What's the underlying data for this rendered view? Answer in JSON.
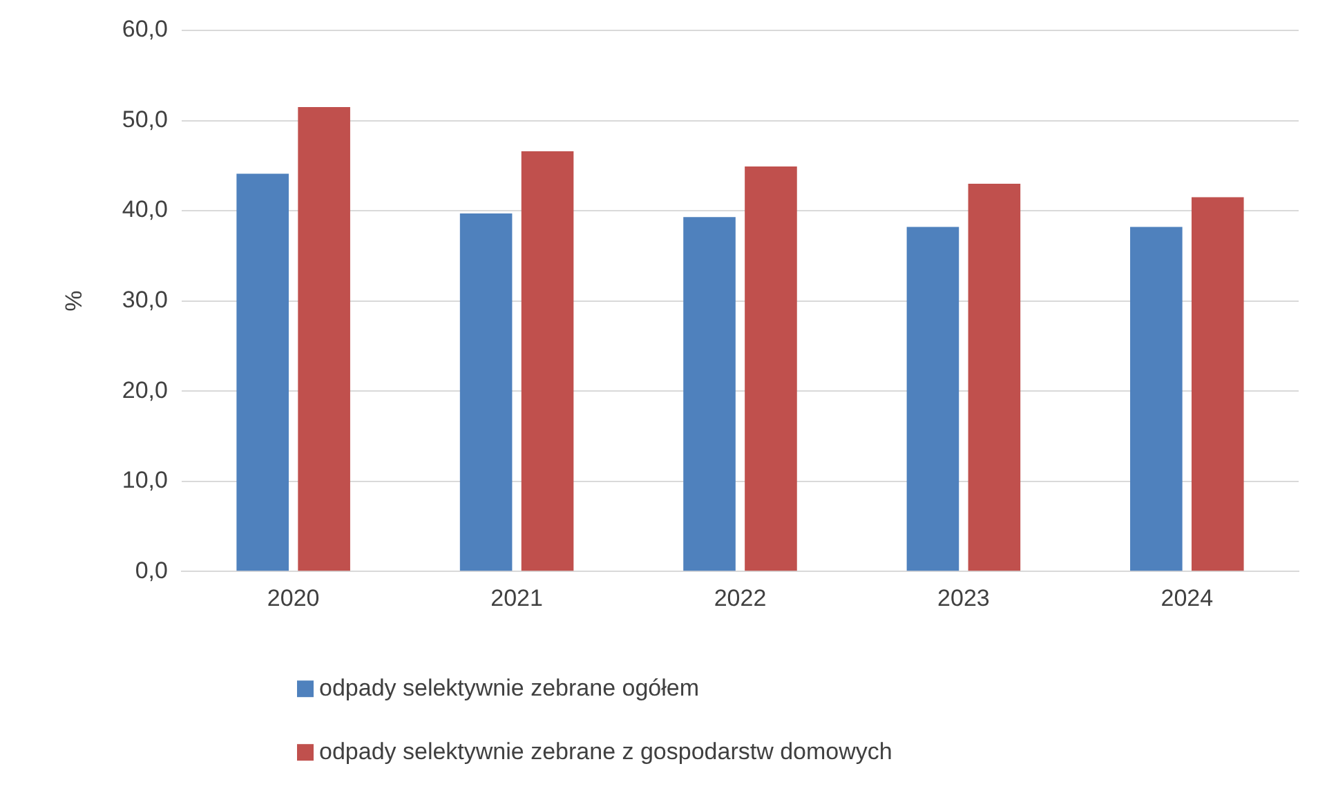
{
  "chart_data": {
    "type": "bar",
    "ylabel": "%",
    "categories": [
      "2020",
      "2021",
      "2022",
      "2023",
      "2024"
    ],
    "series": [
      {
        "name": "odpady selektywnie zebrane ogółem",
        "color": "#4f81bd",
        "values": [
          44.1,
          39.7,
          39.3,
          38.2,
          38.2
        ]
      },
      {
        "name": "odpady selektywnie zebrane z gospodarstw domowych",
        "color": "#c0504d",
        "values": [
          51.5,
          46.6,
          44.9,
          43.0,
          41.5
        ]
      }
    ],
    "ylim": [
      0,
      60
    ],
    "yticks": [
      {
        "value": 0,
        "label": "0,0"
      },
      {
        "value": 10,
        "label": "10,0"
      },
      {
        "value": 20,
        "label": "20,0"
      },
      {
        "value": 30,
        "label": "30,0"
      },
      {
        "value": 40,
        "label": "40,0"
      },
      {
        "value": 50,
        "label": "50,0"
      },
      {
        "value": 60,
        "label": "60,0"
      }
    ],
    "grid": "y",
    "legend": "bottom"
  }
}
